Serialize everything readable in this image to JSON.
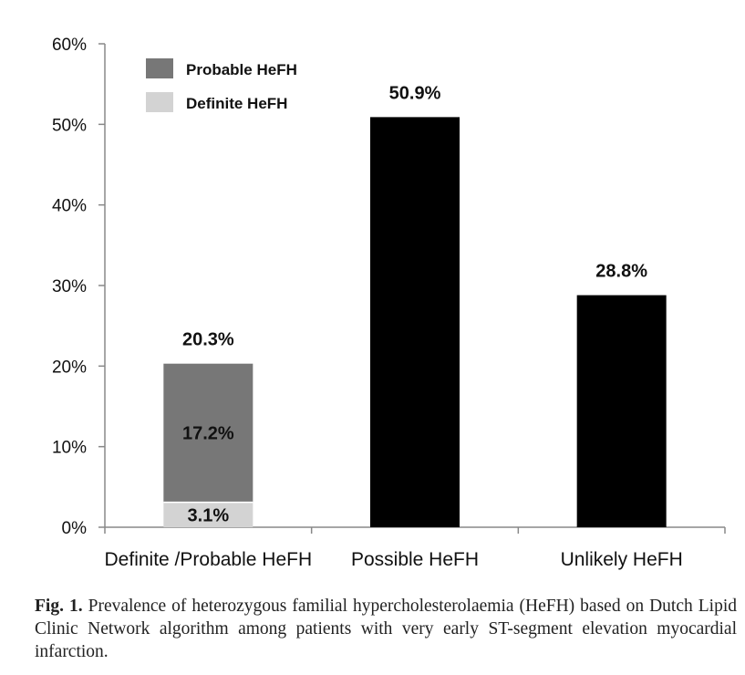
{
  "chart_data": {
    "type": "bar",
    "stacked": true,
    "categories": [
      "Definite /Probable HeFH",
      "Possible HeFH",
      "Unlikely HeFH"
    ],
    "series": [
      {
        "name": "Definite HeFH",
        "color": "#d3d3d3",
        "values": [
          3.1,
          null,
          null
        ],
        "labels": [
          "3.1%",
          "",
          ""
        ]
      },
      {
        "name": "Probable HeFH",
        "color": "#777777",
        "values": [
          17.2,
          null,
          null
        ],
        "labels": [
          "17.2%",
          "",
          ""
        ]
      },
      {
        "name": "",
        "color": "#000000",
        "values": [
          null,
          50.9,
          28.8
        ],
        "labels": [
          "",
          "",
          ""
        ]
      }
    ],
    "totals": [
      20.3,
      50.9,
      28.8
    ],
    "total_labels": [
      "20.3%",
      "50.9%",
      "28.8%"
    ],
    "ylim": [
      0,
      60
    ],
    "yticks": [
      0,
      10,
      20,
      30,
      40,
      50,
      60
    ],
    "ytick_labels": [
      "0%",
      "10%",
      "20%",
      "30%",
      "40%",
      "50%",
      "60%"
    ],
    "legend": {
      "position": "top-left",
      "entries": [
        {
          "label": "Probable HeFH",
          "color": "#777777"
        },
        {
          "label": "Definite HeFH",
          "color": "#d3d3d3"
        }
      ]
    },
    "grid": false
  },
  "caption": {
    "label": "Fig. 1.",
    "text": "Prevalence of heterozygous familial hypercholesterolaemia (HeFH) based on Dutch Lipid Clinic Network algorithm among patients with very early ST-segment elevation myocardial infarction."
  }
}
